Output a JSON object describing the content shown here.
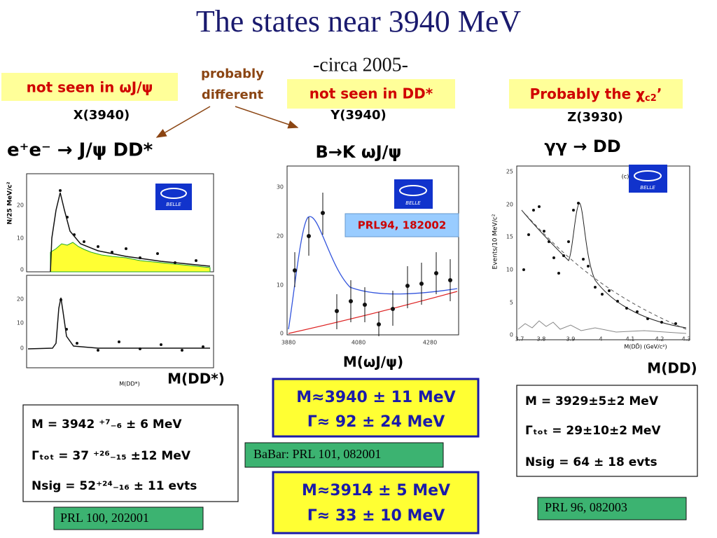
{
  "title": "The states near 3940 MeV",
  "subtitle": "-circa 2005-",
  "annotation": [
    "probably",
    "different"
  ],
  "states": [
    {
      "note": [
        "not seen in ωJ/ψ"
      ],
      "name": "X(3940)",
      "process": "e⁺e⁻ → J/ψ DD*",
      "plot": {
        "ylabel": "N/25 MeV/c²",
        "logo": "BELLE",
        "yticks_top": [
          "20",
          "10",
          "0"
        ],
        "yticks_bottom": [
          "20",
          "10",
          "0"
        ],
        "xlabel": "M(DD*)"
      },
      "xlabel": "M(DD*)",
      "results": [
        "M = 3942 ⁺⁷₋₆ ± 6 MeV",
        "Γₜₒₜ = 37 ⁺²⁶₋₁₅ ±12 MeV",
        "Nsig = 52⁺²⁴₋₁₆ ± 11 evts"
      ],
      "reference": "PRL 100, 202001"
    },
    {
      "note": [
        "not seen in DD*"
      ],
      "name": "Y(3940)",
      "process": "B→K ωJ/ψ",
      "plot": {
        "logo": "BELLE",
        "badge": "PRL94, 182002",
        "yticks": [
          "30",
          "20",
          "10",
          "0"
        ],
        "xticks": [
          "3880",
          "4080",
          "4280"
        ]
      },
      "xlabel": "M(ωJ/ψ)",
      "results": [
        [
          "M≈3940 ± 11 MeV",
          "Γ≈ 92 ± 24 MeV"
        ],
        [
          "M≈3914 ± 5 MeV",
          "Γ≈ 33 ± 10 MeV"
        ]
      ],
      "reference": "BaBar: PRL 101, 082001"
    },
    {
      "note": [
        "Probably the χ",
        "c2",
        "’"
      ],
      "name": "Z(3930)",
      "process": "γγ → DD",
      "plot": {
        "ylabel": "Events/10 MeV/c²",
        "logo": "BELLE",
        "panel": "(c)",
        "yticks": [
          "25",
          "20",
          "15",
          "10",
          "5",
          "0"
        ],
        "xticks": [
          "3.7",
          "3.8",
          "3.9",
          "4",
          "4.1",
          "4.2",
          "4.3"
        ],
        "xlabel": "M(DD̄) (GeV/c²)"
      },
      "xlabel": "M(DD)",
      "results": [
        "M = 3929±5±2 MeV",
        "Γₜₒₜ = 29±10±2 MeV",
        "Nsig = 64 ± 18 evts"
      ],
      "reference": "PRL 96, 082003"
    }
  ]
}
